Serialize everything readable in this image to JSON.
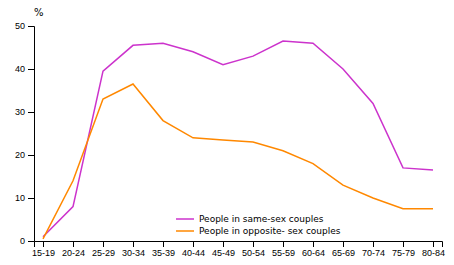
{
  "chart_data": {
    "type": "line",
    "ylabel": "%",
    "categories": [
      "15-19",
      "20-24",
      "25-29",
      "30-34",
      "35-39",
      "40-44",
      "45-49",
      "50-54",
      "55-59",
      "60-64",
      "65-69",
      "70-74",
      "75-79",
      "80-84"
    ],
    "series": [
      {
        "name": "People in same-sex couples",
        "color": "#cc33cc",
        "values": [
          1,
          8,
          39.5,
          45.5,
          46,
          44,
          41,
          43,
          46.5,
          46,
          40,
          32,
          17,
          16.5
        ]
      },
      {
        "name": "People in opposite- sex couples",
        "color": "#ff8800",
        "values": [
          0.5,
          14,
          33,
          36.5,
          28,
          24,
          23.5,
          23,
          21,
          18,
          13,
          10,
          7.5,
          7.5
        ]
      }
    ],
    "ylim": [
      0,
      50
    ],
    "yticks": [
      0,
      10,
      20,
      30,
      40,
      50
    ],
    "grid": false,
    "legend": "bottom"
  }
}
